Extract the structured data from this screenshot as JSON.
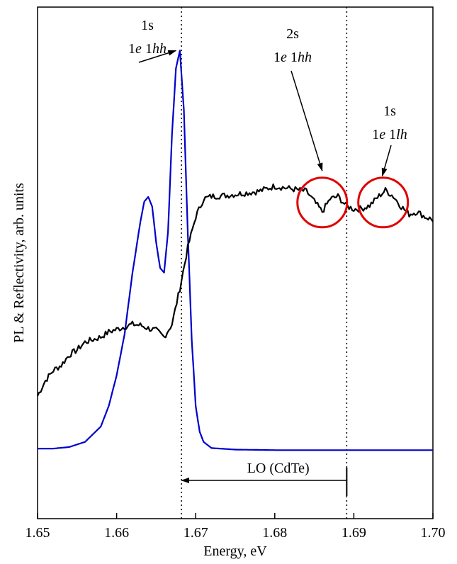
{
  "chart_data": {
    "type": "line",
    "xlabel": "Energy, eV",
    "ylabel": "PL & Reflectivity, arb. units",
    "xlim": [
      1.65,
      1.7
    ],
    "ylim": [
      0,
      1
    ],
    "x_ticks": [
      "1.65",
      "1.66",
      "1.67",
      "1.68",
      "1.69",
      "1.70"
    ],
    "grid": false,
    "series": [
      {
        "color": "#0000cc",
        "x": [
          1.65,
          1.652,
          1.654,
          1.656,
          1.658,
          1.659,
          1.66,
          1.661,
          1.662,
          1.663,
          1.6635,
          1.664,
          1.6645,
          1.665,
          1.6655,
          1.666,
          1.6665,
          1.667,
          1.6675,
          1.668,
          1.6685,
          1.669,
          1.6695,
          1.67,
          1.6705,
          1.671,
          1.672,
          1.675,
          1.68,
          1.69,
          1.7
        ],
        "y": [
          0.137,
          0.137,
          0.14,
          0.15,
          0.18,
          0.22,
          0.28,
          0.36,
          0.48,
          0.58,
          0.62,
          0.629,
          0.61,
          0.54,
          0.49,
          0.481,
          0.56,
          0.75,
          0.88,
          0.915,
          0.8,
          0.56,
          0.35,
          0.22,
          0.17,
          0.15,
          0.138,
          0.135,
          0.134,
          0.134,
          0.134
        ]
      },
      {
        "color": "#000000",
        "x": [
          1.65,
          1.651,
          1.652,
          1.653,
          1.654,
          1.655,
          1.656,
          1.657,
          1.658,
          1.659,
          1.66,
          1.661,
          1.662,
          1.663,
          1.664,
          1.665,
          1.666,
          1.667,
          1.668,
          1.669,
          1.67,
          1.671,
          1.672,
          1.674,
          1.676,
          1.678,
          1.68,
          1.682,
          1.684,
          1.685,
          1.686,
          1.687,
          1.688,
          1.689,
          1.69,
          1.691,
          1.692,
          1.693,
          1.694,
          1.695,
          1.696,
          1.697,
          1.698,
          1.699,
          1.7
        ],
        "y": [
          0.24,
          0.27,
          0.29,
          0.3,
          0.32,
          0.33,
          0.345,
          0.35,
          0.355,
          0.365,
          0.37,
          0.375,
          0.38,
          0.378,
          0.372,
          0.368,
          0.355,
          0.38,
          0.45,
          0.53,
          0.59,
          0.625,
          0.63,
          0.632,
          0.636,
          0.64,
          0.65,
          0.645,
          0.64,
          0.62,
          0.6,
          0.625,
          0.63,
          0.612,
          0.605,
          0.606,
          0.612,
          0.628,
          0.642,
          0.63,
          0.61,
          0.595,
          0.6,
          0.59,
          0.584
        ]
      }
    ],
    "reference_lines": [
      {
        "x": 1.6682,
        "style": "dotted"
      },
      {
        "x": 1.6891,
        "style": "dotted"
      }
    ],
    "annotations": [
      {
        "line1": "1s",
        "line2_num": "1",
        "line2_italic1": "e",
        "line2_mid": " 1",
        "line2_italic2": "hh",
        "target_x": 1.6675,
        "target_y": 0.915
      },
      {
        "line1": "2s",
        "line2_num": "1",
        "line2_italic1": "e",
        "line2_mid": " 1",
        "line2_italic2": "hh",
        "target_x": 1.686,
        "target_y": 0.68
      },
      {
        "line1": "1s",
        "line2_num": "1",
        "line2_italic1": "e",
        "line2_mid": " 1",
        "line2_italic2": "lh",
        "target_x": 1.6936,
        "target_y": 0.67
      }
    ],
    "circles": [
      {
        "x": 1.686,
        "y": 0.618
      },
      {
        "x": 1.6937,
        "y": 0.618
      }
    ],
    "lo_arrow": {
      "label": "LO (CdTe)",
      "from_x": 1.6891,
      "to_x": 1.6682
    },
    "colors": {
      "pl": "#0000cc",
      "reflectivity": "#000000",
      "circle": "#e00000"
    }
  }
}
